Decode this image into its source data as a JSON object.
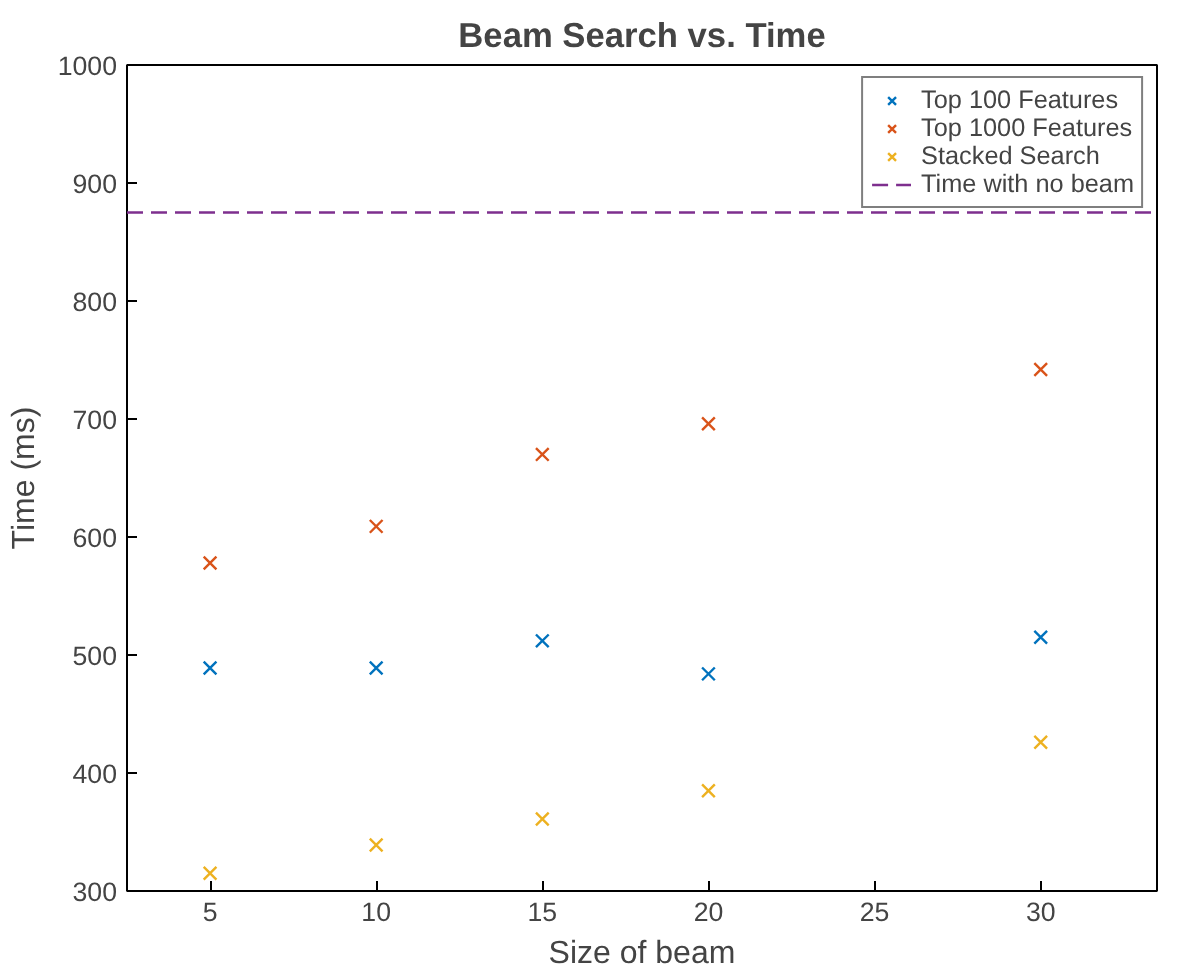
{
  "chart_data": {
    "type": "scatter",
    "title": "Beam Search vs. Time",
    "xlabel": "Size of beam",
    "ylabel": "Time (ms)",
    "x": [
      5,
      10,
      15,
      20,
      30
    ],
    "series": [
      {
        "name": "Top 100 Features",
        "color": "#0072bd",
        "values": [
          489,
          489,
          512,
          484,
          515
        ]
      },
      {
        "name": "Top 1000 Features",
        "color": "#d95319",
        "values": [
          578,
          609,
          670,
          696,
          742
        ]
      },
      {
        "name": "Stacked Search",
        "color": "#edb120",
        "values": [
          315,
          339,
          361,
          385,
          426
        ]
      }
    ],
    "ref_lines": [
      {
        "axis": "y",
        "value": 875,
        "label": "Time with no beam",
        "color": "#7e2f8e",
        "line_style": "dashed"
      }
    ],
    "xlim": [
      2.5,
      33.5
    ],
    "ylim": [
      300,
      1000
    ],
    "xticks": [
      5,
      10,
      15,
      20,
      25,
      30
    ],
    "yticks": [
      300,
      400,
      500,
      600,
      700,
      800,
      900,
      1000
    ],
    "grid": false,
    "legend": "top right",
    "marker": "cross"
  }
}
